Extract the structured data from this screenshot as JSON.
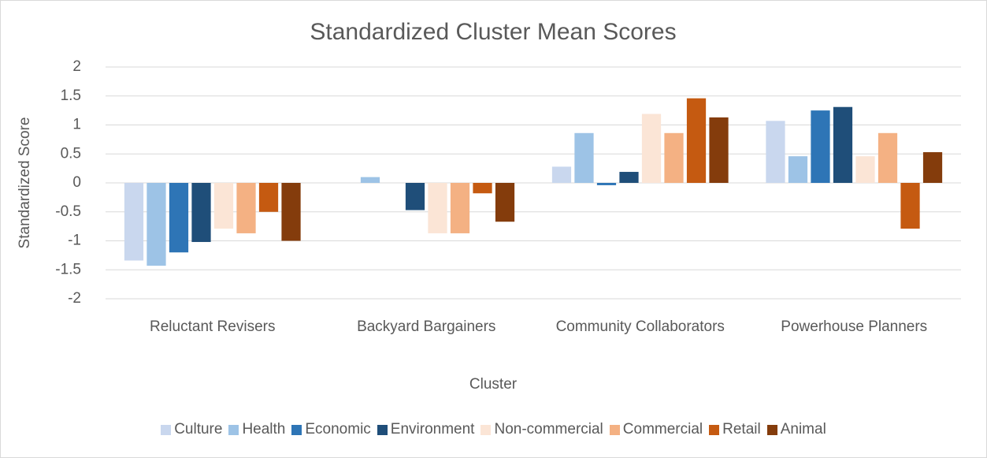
{
  "chart_data": {
    "type": "bar",
    "title": "Standardized Cluster Mean Scores",
    "x_label": "Cluster",
    "y_label": "Standardized Score",
    "categories": [
      "Reluctant Revisers",
      "Backyard Bargainers",
      "Community Collaborators",
      "Powerhouse Planners"
    ],
    "series": [
      {
        "name": "Culture",
        "color": "#c9d7ee",
        "values": [
          -1.34,
          0,
          0.28,
          1.07
        ]
      },
      {
        "name": "Health",
        "color": "#9dc3e6",
        "values": [
          -1.43,
          0.1,
          0.86,
          0.46
        ]
      },
      {
        "name": "Economic",
        "color": "#2e75b6",
        "values": [
          -1.2,
          0,
          -0.04,
          1.25
        ]
      },
      {
        "name": "Environment",
        "color": "#1f4e79",
        "values": [
          -1.02,
          -0.47,
          0.19,
          1.31
        ]
      },
      {
        "name": "Non-commercial",
        "color": "#fbe5d6",
        "values": [
          -0.79,
          -0.87,
          1.19,
          0.46
        ]
      },
      {
        "name": "Commercial",
        "color": "#f4b183",
        "values": [
          -0.87,
          -0.87,
          0.86,
          0.86
        ]
      },
      {
        "name": "Retail",
        "color": "#c55a11",
        "values": [
          -0.5,
          -0.18,
          1.46,
          -0.79
        ]
      },
      {
        "name": "Animal",
        "color": "#843c0c",
        "values": [
          -1.0,
          -0.67,
          1.13,
          0.53
        ]
      }
    ],
    "ylim": [
      -2,
      2
    ],
    "yticks": [
      -2,
      -1.5,
      -1,
      -0.5,
      0,
      0.5,
      1,
      1.5,
      2
    ],
    "grid": true,
    "legend": "bottom"
  }
}
